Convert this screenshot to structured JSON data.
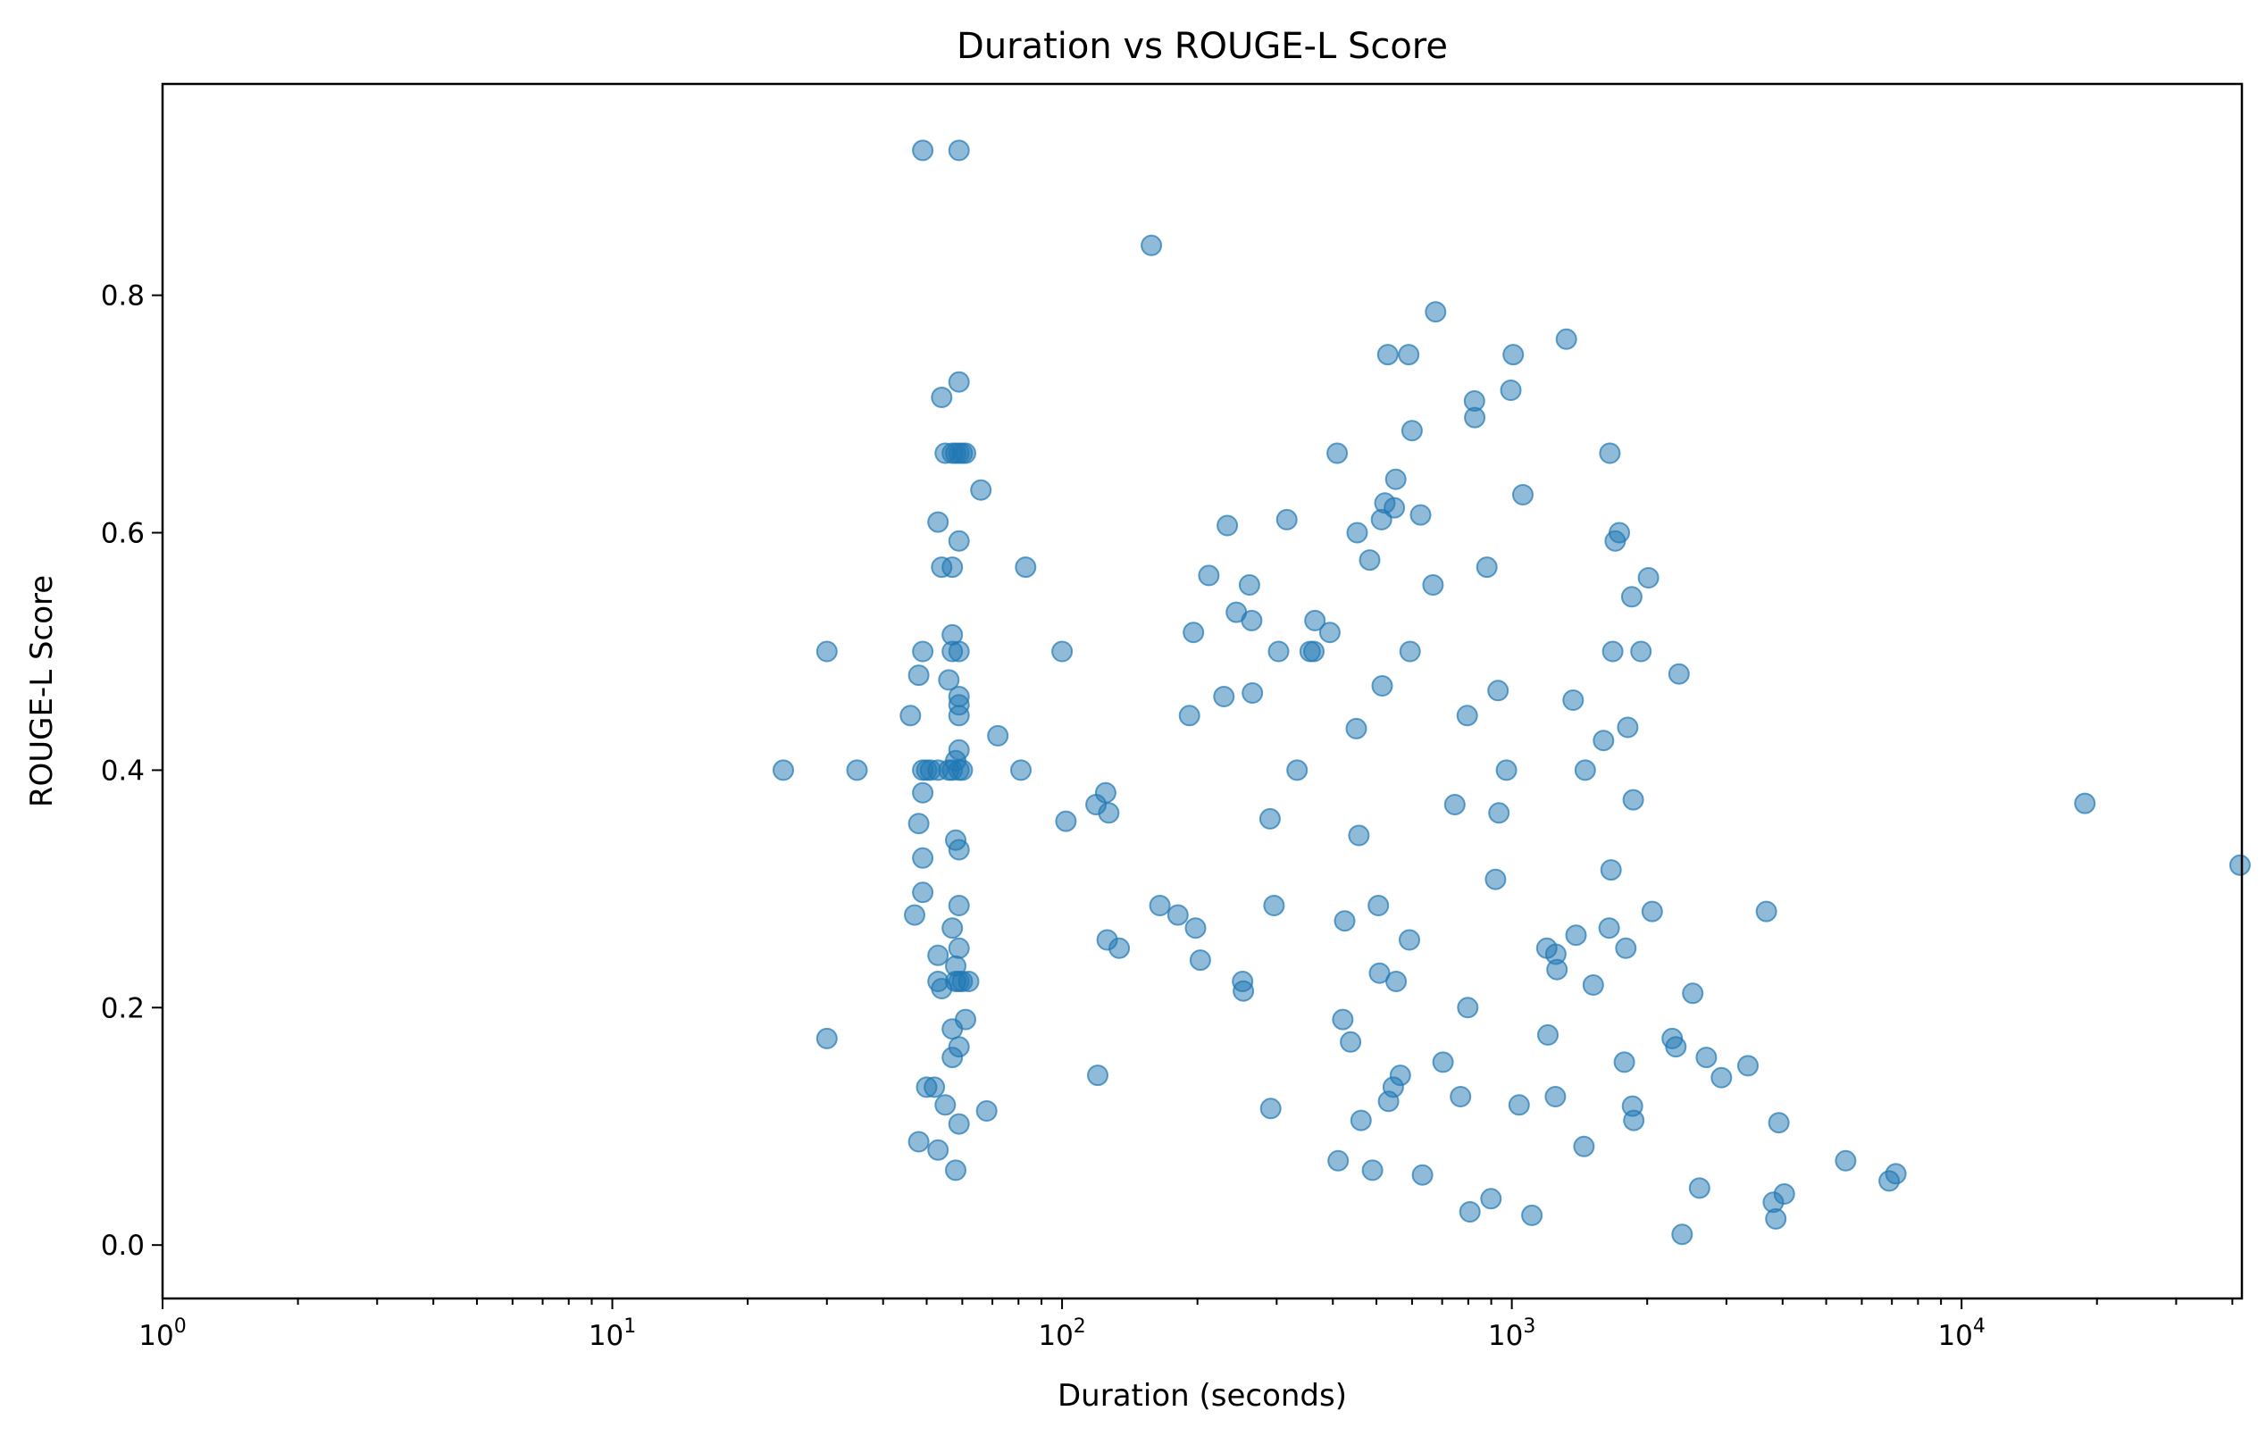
{
  "chart_data": {
    "type": "scatter",
    "title": "Duration vs ROUGE-L Score",
    "xlabel": "Duration (seconds)",
    "ylabel": "ROUGE-L Score",
    "xscale": "log",
    "xlim": [
      1,
      42000
    ],
    "ylim": [
      -0.045,
      0.978
    ],
    "yticks": [
      0.0,
      0.2,
      0.4,
      0.6,
      0.8
    ],
    "ytick_labels": [
      "0.0",
      "0.2",
      "0.4",
      "0.6",
      "0.8"
    ],
    "xticks": [
      1,
      10,
      100,
      1000,
      10000
    ],
    "xtick_base": "10",
    "xtick_exponents": [
      "0",
      "1",
      "2",
      "3",
      "4"
    ],
    "grid": false,
    "color": "#1f77b4",
    "points": [
      [
        24,
        0.4
      ],
      [
        30,
        0.5
      ],
      [
        30,
        0.174
      ],
      [
        35,
        0.4
      ],
      [
        46,
        0.446
      ],
      [
        47,
        0.278
      ],
      [
        48,
        0.48
      ],
      [
        48,
        0.355
      ],
      [
        48,
        0.087
      ],
      [
        49,
        0.922
      ],
      [
        49,
        0.5
      ],
      [
        49,
        0.4
      ],
      [
        49,
        0.381
      ],
      [
        49,
        0.326
      ],
      [
        49,
        0.297
      ],
      [
        50,
        0.4
      ],
      [
        50,
        0.133
      ],
      [
        51,
        0.4
      ],
      [
        52,
        0.133
      ],
      [
        53,
        0.609
      ],
      [
        53,
        0.4
      ],
      [
        53,
        0.244
      ],
      [
        53,
        0.222
      ],
      [
        53,
        0.08
      ],
      [
        54,
        0.714
      ],
      [
        54,
        0.571
      ],
      [
        54,
        0.216
      ],
      [
        55,
        0.667
      ],
      [
        55,
        0.118
      ],
      [
        56,
        0.476
      ],
      [
        56,
        0.4
      ],
      [
        57,
        0.667
      ],
      [
        57,
        0.571
      ],
      [
        57,
        0.514
      ],
      [
        57,
        0.5
      ],
      [
        57,
        0.4
      ],
      [
        57,
        0.267
      ],
      [
        57,
        0.182
      ],
      [
        57,
        0.158
      ],
      [
        58,
        0.667
      ],
      [
        58,
        0.408
      ],
      [
        58,
        0.341
      ],
      [
        58,
        0.235
      ],
      [
        58,
        0.222
      ],
      [
        58,
        0.063
      ],
      [
        59,
        0.922
      ],
      [
        59,
        0.727
      ],
      [
        59,
        0.667
      ],
      [
        59,
        0.593
      ],
      [
        59,
        0.5
      ],
      [
        59,
        0.462
      ],
      [
        59,
        0.455
      ],
      [
        59,
        0.446
      ],
      [
        59,
        0.417
      ],
      [
        59,
        0.4
      ],
      [
        59,
        0.333
      ],
      [
        59,
        0.286
      ],
      [
        59,
        0.25
      ],
      [
        59,
        0.222
      ],
      [
        59,
        0.167
      ],
      [
        59,
        0.102
      ],
      [
        60,
        0.667
      ],
      [
        60,
        0.4
      ],
      [
        60,
        0.222
      ],
      [
        61,
        0.667
      ],
      [
        61,
        0.19
      ],
      [
        62,
        0.222
      ],
      [
        66,
        0.636
      ],
      [
        68,
        0.113
      ],
      [
        72,
        0.429
      ],
      [
        81,
        0.4
      ],
      [
        83,
        0.571
      ],
      [
        100,
        0.5
      ],
      [
        102,
        0.357
      ],
      [
        119,
        0.371
      ],
      [
        120,
        0.143
      ],
      [
        125,
        0.381
      ],
      [
        126,
        0.257
      ],
      [
        127,
        0.364
      ],
      [
        134,
        0.25
      ],
      [
        158,
        0.842
      ],
      [
        165,
        0.286
      ],
      [
        181,
        0.278
      ],
      [
        192,
        0.446
      ],
      [
        196,
        0.516
      ],
      [
        198,
        0.267
      ],
      [
        203,
        0.24
      ],
      [
        212,
        0.564
      ],
      [
        229,
        0.462
      ],
      [
        233,
        0.606
      ],
      [
        244,
        0.533
      ],
      [
        252,
        0.222
      ],
      [
        253,
        0.214
      ],
      [
        261,
        0.556
      ],
      [
        264,
        0.526
      ],
      [
        265,
        0.465
      ],
      [
        290,
        0.359
      ],
      [
        291,
        0.115
      ],
      [
        296,
        0.286
      ],
      [
        303,
        0.5
      ],
      [
        316,
        0.611
      ],
      [
        333,
        0.4
      ],
      [
        356,
        0.5
      ],
      [
        363,
        0.5
      ],
      [
        365,
        0.526
      ],
      [
        394,
        0.516
      ],
      [
        409,
        0.667
      ],
      [
        411,
        0.071
      ],
      [
        421,
        0.19
      ],
      [
        425,
        0.273
      ],
      [
        438,
        0.171
      ],
      [
        451,
        0.435
      ],
      [
        453,
        0.6
      ],
      [
        457,
        0.345
      ],
      [
        462,
        0.105
      ],
      [
        483,
        0.577
      ],
      [
        490,
        0.063
      ],
      [
        505,
        0.286
      ],
      [
        508,
        0.229
      ],
      [
        513,
        0.611
      ],
      [
        515,
        0.471
      ],
      [
        522,
        0.625
      ],
      [
        530,
        0.75
      ],
      [
        532,
        0.121
      ],
      [
        545,
        0.133
      ],
      [
        548,
        0.621
      ],
      [
        552,
        0.645
      ],
      [
        553,
        0.222
      ],
      [
        565,
        0.143
      ],
      [
        590,
        0.75
      ],
      [
        592,
        0.257
      ],
      [
        594,
        0.5
      ],
      [
        600,
        0.686
      ],
      [
        627,
        0.615
      ],
      [
        633,
        0.059
      ],
      [
        668,
        0.556
      ],
      [
        677,
        0.786
      ],
      [
        703,
        0.154
      ],
      [
        747,
        0.371
      ],
      [
        769,
        0.125
      ],
      [
        796,
        0.446
      ],
      [
        798,
        0.2
      ],
      [
        807,
        0.028
      ],
      [
        826,
        0.711
      ],
      [
        827,
        0.697
      ],
      [
        880,
        0.571
      ],
      [
        899,
        0.039
      ],
      [
        920,
        0.308
      ],
      [
        932,
        0.467
      ],
      [
        936,
        0.364
      ],
      [
        973,
        0.4
      ],
      [
        995,
        0.72
      ],
      [
        1007,
        0.75
      ],
      [
        1038,
        0.118
      ],
      [
        1058,
        0.632
      ],
      [
        1108,
        0.025
      ],
      [
        1196,
        0.25
      ],
      [
        1203,
        0.177
      ],
      [
        1250,
        0.125
      ],
      [
        1253,
        0.245
      ],
      [
        1260,
        0.232
      ],
      [
        1322,
        0.763
      ],
      [
        1369,
        0.459
      ],
      [
        1389,
        0.261
      ],
      [
        1447,
        0.083
      ],
      [
        1456,
        0.4
      ],
      [
        1517,
        0.219
      ],
      [
        1599,
        0.425
      ],
      [
        1646,
        0.267
      ],
      [
        1652,
        0.667
      ],
      [
        1662,
        0.316
      ],
      [
        1676,
        0.5
      ],
      [
        1698,
        0.593
      ],
      [
        1734,
        0.6
      ],
      [
        1779,
        0.154
      ],
      [
        1793,
        0.25
      ],
      [
        1810,
        0.436
      ],
      [
        1848,
        0.546
      ],
      [
        1855,
        0.117
      ],
      [
        1862,
        0.375
      ],
      [
        1867,
        0.105
      ],
      [
        1937,
        0.5
      ],
      [
        2013,
        0.562
      ],
      [
        2052,
        0.281
      ],
      [
        2273,
        0.174
      ],
      [
        2316,
        0.167
      ],
      [
        2353,
        0.481
      ],
      [
        2391,
        0.009
      ],
      [
        2525,
        0.212
      ],
      [
        2615,
        0.048
      ],
      [
        2707,
        0.158
      ],
      [
        2924,
        0.141
      ],
      [
        3350,
        0.151
      ],
      [
        3681,
        0.281
      ],
      [
        3815,
        0.036
      ],
      [
        3864,
        0.022
      ],
      [
        3924,
        0.103
      ],
      [
        4036,
        0.043
      ],
      [
        5524,
        0.071
      ],
      [
        6901,
        0.054
      ],
      [
        7144,
        0.06
      ],
      [
        18800,
        0.372
      ],
      [
        41600,
        0.32
      ]
    ]
  }
}
